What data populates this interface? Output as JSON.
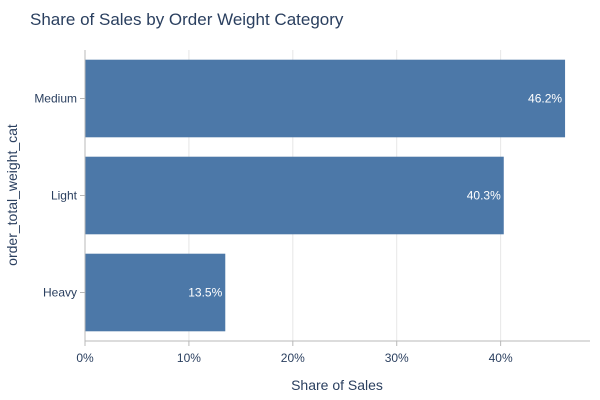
{
  "chart_data": {
    "type": "bar",
    "orientation": "horizontal",
    "title": "Share of Sales by Order Weight Category",
    "xlabel": "Share of Sales",
    "ylabel": "order_total_weight_cat",
    "categories": [
      "Medium",
      "Light",
      "Heavy"
    ],
    "values": [
      46.2,
      40.3,
      13.5
    ],
    "data_labels": [
      "46.2%",
      "40.3%",
      "13.5%"
    ],
    "xlim": [
      0,
      48.6
    ],
    "xticks": [
      0,
      10,
      20,
      30,
      40
    ],
    "xtick_labels": [
      "0%",
      "10%",
      "20%",
      "30%",
      "40%"
    ],
    "grid": true,
    "bar_color": "#4c78a8"
  }
}
